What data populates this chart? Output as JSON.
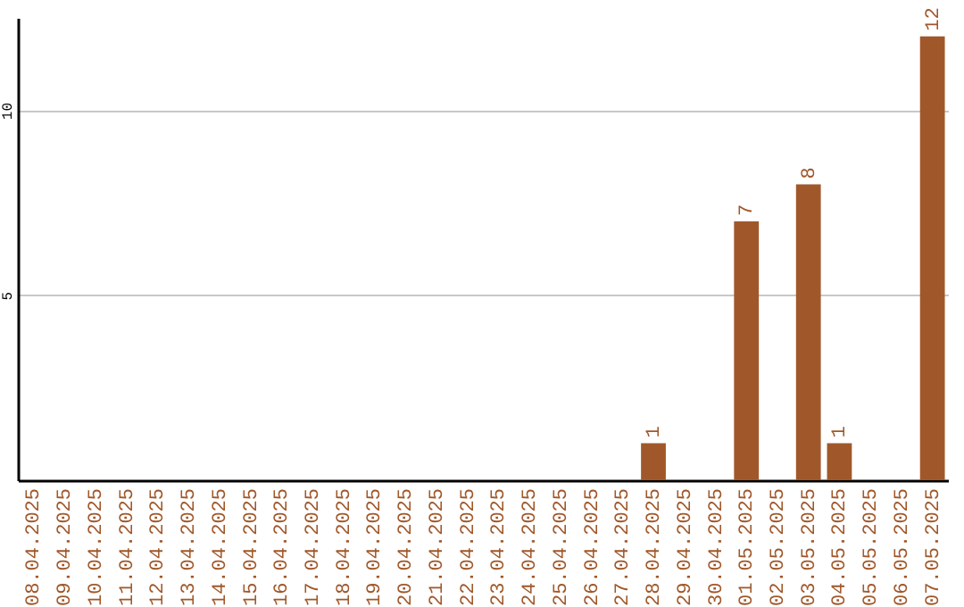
{
  "chart_data": {
    "type": "bar",
    "categories": [
      "08.04.2025",
      "09.04.2025",
      "10.04.2025",
      "11.04.2025",
      "12.04.2025",
      "13.04.2025",
      "14.04.2025",
      "15.04.2025",
      "16.04.2025",
      "17.04.2025",
      "18.04.2025",
      "19.04.2025",
      "20.04.2025",
      "21.04.2025",
      "22.04.2025",
      "23.04.2025",
      "24.04.2025",
      "25.04.2025",
      "26.04.2025",
      "27.04.2025",
      "28.04.2025",
      "29.04.2025",
      "30.04.2025",
      "01.05.2025",
      "02.05.2025",
      "03.05.2025",
      "04.05.2025",
      "05.05.2025",
      "06.05.2025",
      "07.05.2025"
    ],
    "values": [
      0,
      0,
      0,
      0,
      0,
      0,
      0,
      0,
      0,
      0,
      0,
      0,
      0,
      0,
      0,
      0,
      0,
      0,
      0,
      0,
      1,
      0,
      0,
      7,
      0,
      8,
      1,
      0,
      0,
      12
    ],
    "value_labels": [
      null,
      null,
      null,
      null,
      null,
      null,
      null,
      null,
      null,
      null,
      null,
      null,
      null,
      null,
      null,
      null,
      null,
      null,
      null,
      null,
      "1",
      null,
      null,
      "7",
      null,
      "8",
      "1",
      null,
      null,
      "12"
    ],
    "color": "#a0582a",
    "ylim": [
      0,
      12.5
    ],
    "yticks": [
      5,
      10
    ],
    "grid": "y"
  }
}
